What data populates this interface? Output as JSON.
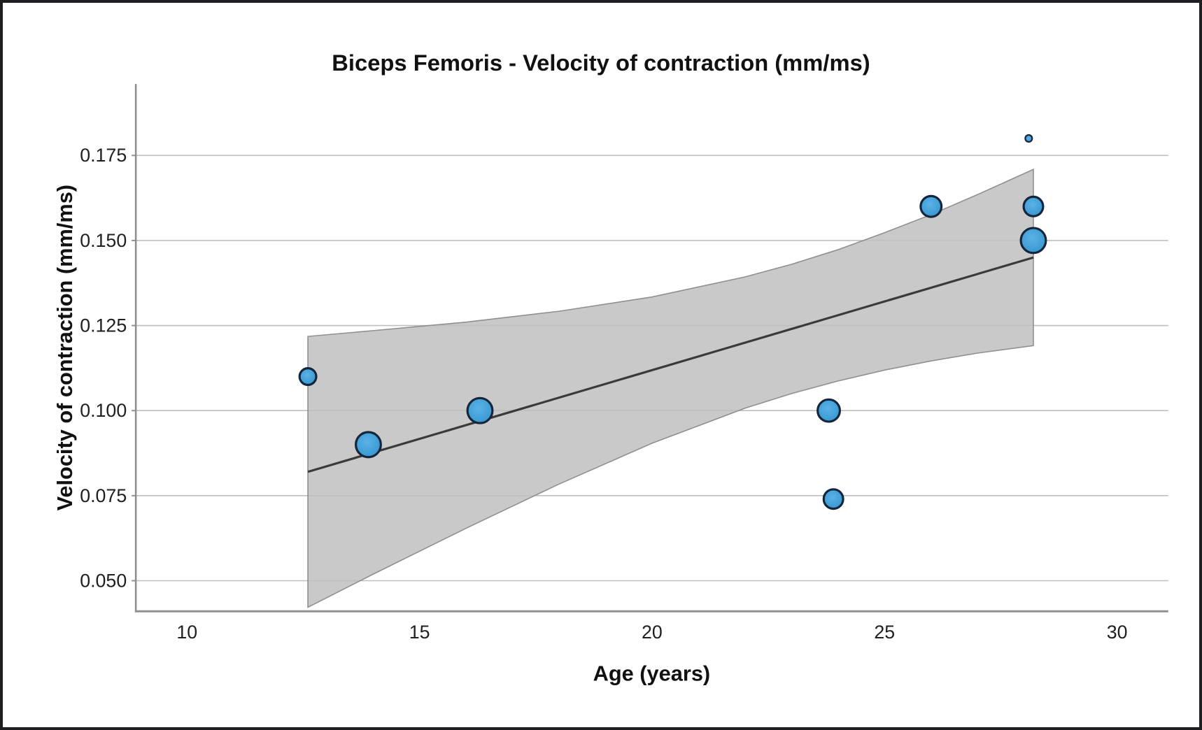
{
  "chart_data": {
    "type": "scatter",
    "title": "Biceps Femoris - Velocity of contraction (mm/ms)",
    "xlabel": "Age (years)",
    "ylabel": "Velocity of contraction (mm/ms)",
    "xlim": [
      8.9,
      31.1
    ],
    "ylim": [
      0.041,
      0.196
    ],
    "xticks": [
      "10",
      "15",
      "20",
      "25",
      "30"
    ],
    "yticks": [
      "0.050",
      "0.075",
      "0.100",
      "0.125",
      "0.150",
      "0.175"
    ],
    "grid": "horizontal",
    "legend": "none",
    "points": [
      {
        "x": 12.6,
        "y": 0.11,
        "r": 12
      },
      {
        "x": 13.9,
        "y": 0.09,
        "r": 18
      },
      {
        "x": 16.3,
        "y": 0.1,
        "r": 18
      },
      {
        "x": 23.8,
        "y": 0.1,
        "r": 16
      },
      {
        "x": 23.9,
        "y": 0.074,
        "r": 14
      },
      {
        "x": 26.0,
        "y": 0.16,
        "r": 15
      },
      {
        "x": 28.2,
        "y": 0.16,
        "r": 14
      },
      {
        "x": 28.2,
        "y": 0.15,
        "r": 18
      },
      {
        "x": 28.1,
        "y": 0.18,
        "r": 5
      }
    ],
    "regression_line": {
      "x1": 12.6,
      "y1": 0.082,
      "x2": 28.2,
      "y2": 0.145
    },
    "confidence_band": {
      "x": [
        12.6,
        14,
        16,
        18,
        20,
        22,
        23,
        24,
        25,
        26,
        27,
        28.2
      ],
      "upper": [
        0.1218,
        0.1235,
        0.126,
        0.1292,
        0.1334,
        0.1393,
        0.143,
        0.1473,
        0.1523,
        0.1576,
        0.1635,
        0.1709
      ],
      "lower": [
        0.0422,
        0.0519,
        0.0654,
        0.0784,
        0.0904,
        0.1007,
        0.105,
        0.1087,
        0.1119,
        0.1146,
        0.1169,
        0.1191
      ]
    },
    "colors": {
      "point_fill": "#3fa1d9",
      "point_fill_light": "#5bb2e5",
      "point_stroke": "#16263a",
      "band_fill": "#c9c9c9",
      "band_stroke": "#8f8f8f",
      "regression_line": "#3a3a3a",
      "gridline": "#bfbfbf",
      "axis_line": "#8f8f8f",
      "text": "#1f1f1f",
      "background": "#ffffff",
      "border": "#1e1e22"
    }
  }
}
